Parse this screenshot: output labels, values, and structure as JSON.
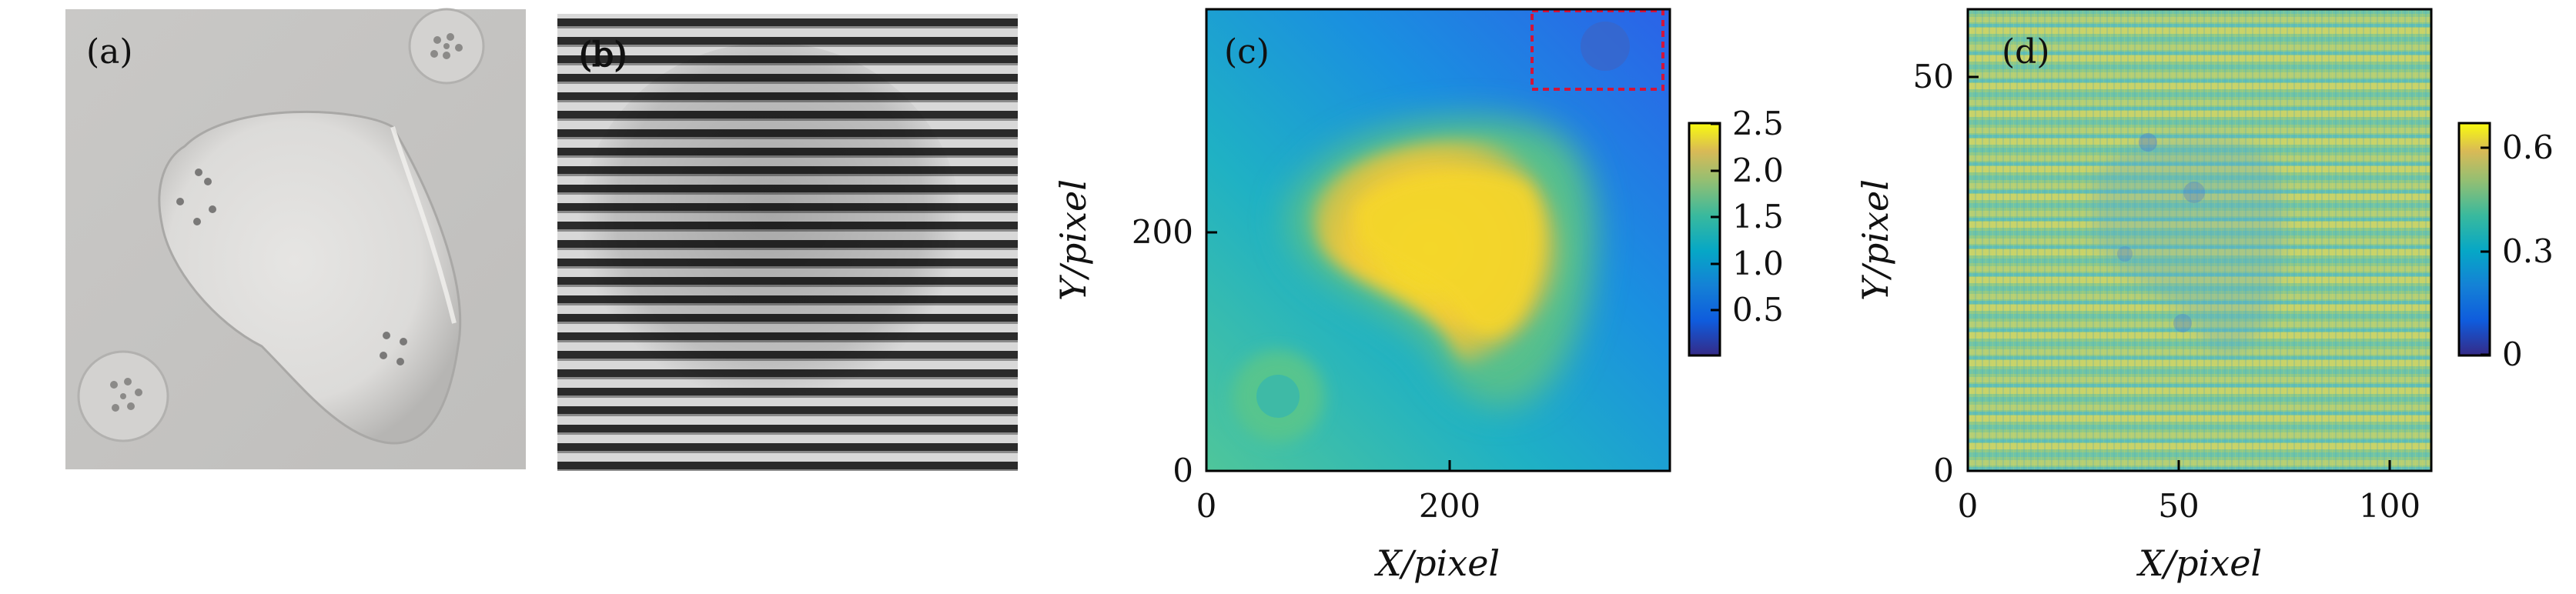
{
  "panels": {
    "a": {
      "label": "(a)"
    },
    "b": {
      "label": "(b)"
    },
    "c": {
      "label": "(c)"
    },
    "d": {
      "label": "(d)"
    }
  },
  "axes": {
    "c": {
      "xlabel": "X/pixel",
      "ylabel": "Y/pixel",
      "xticks": [
        "0",
        "200"
      ],
      "yticks": [
        "0",
        "200"
      ]
    },
    "d": {
      "xlabel": "X/pixel",
      "ylabel": "Y/pixel",
      "xticks": [
        "0",
        "50",
        "100"
      ],
      "yticks": [
        "0",
        "50"
      ]
    }
  },
  "colorbars": {
    "c": {
      "ticks": [
        "2.5",
        "2.0",
        "1.5",
        "1.0",
        "0.5"
      ]
    },
    "d": {
      "ticks": [
        "0.6",
        "0.3",
        "0"
      ]
    }
  },
  "chart_data": [
    {
      "type": "heatmap",
      "panel": "c",
      "xlabel": "X/pixel",
      "ylabel": "Y/pixel",
      "xlim": [
        0,
        380
      ],
      "ylim": [
        0,
        380
      ],
      "colorbar_range": [
        0.1,
        2.6
      ],
      "colormap": "parula",
      "annotation": "red dashed box, top-right region"
    },
    {
      "type": "heatmap",
      "panel": "d",
      "xlabel": "X/pixel",
      "ylabel": "Y/pixel",
      "xlim": [
        0,
        110
      ],
      "ylim": [
        0,
        58
      ],
      "colorbar_range": [
        0,
        0.7
      ],
      "colormap": "parula"
    }
  ],
  "colors": {
    "frame": "#000000",
    "annotation_box": "#d2143a"
  }
}
